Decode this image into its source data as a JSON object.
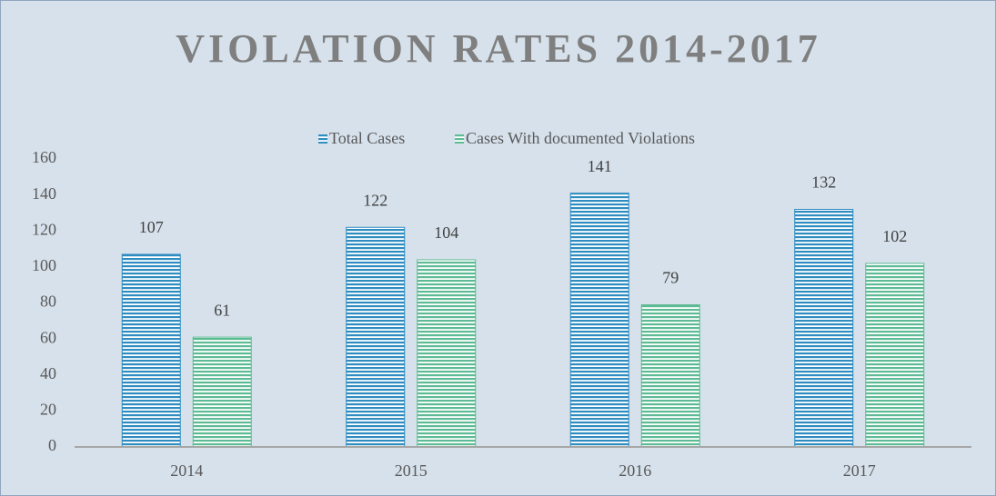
{
  "chart_data": {
    "type": "bar",
    "title": "VIOLATION RATES 2014-2017",
    "categories": [
      "2014",
      "2015",
      "2016",
      "2017"
    ],
    "series": [
      {
        "name": "Total Cases",
        "color": "#2e8cc0",
        "values": [
          107,
          122,
          141,
          132
        ]
      },
      {
        "name": "Cases With documented Violations",
        "color": "#5dbb94",
        "values": [
          61,
          104,
          79,
          102
        ]
      }
    ],
    "ylim": [
      0,
      160
    ],
    "yticks": [
      0,
      20,
      40,
      60,
      80,
      100,
      120,
      140,
      160
    ],
    "grid": false,
    "legend": "top"
  }
}
